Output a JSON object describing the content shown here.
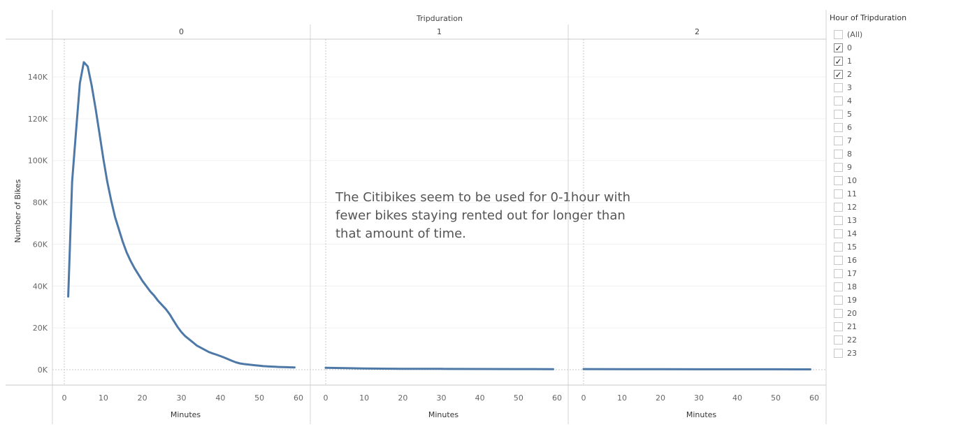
{
  "chart_data": {
    "type": "line",
    "column_header_title": "Tripduration",
    "ylabel": "Number of Bikes",
    "xlabel": "Minutes",
    "y_ticks": [
      "0K",
      "20K",
      "40K",
      "60K",
      "80K",
      "100K",
      "120K",
      "140K"
    ],
    "ylim": [
      0,
      150000
    ],
    "xlim": [
      0,
      60
    ],
    "x_ticks": [
      0,
      10,
      20,
      30,
      40,
      50,
      60
    ],
    "annotation": "The Citibikes seem to be used for 0-1hour with fewer bikes staying rented out for longer than that amount of time.",
    "panels": [
      {
        "header": "0",
        "x": [
          1,
          2,
          3,
          4,
          5,
          6,
          7,
          8,
          9,
          10,
          11,
          12,
          13,
          14,
          15,
          16,
          17,
          18,
          19,
          20,
          21,
          22,
          23,
          24,
          25,
          26,
          27,
          28,
          29,
          30,
          31,
          32,
          33,
          34,
          35,
          36,
          37,
          38,
          39,
          40,
          41,
          42,
          43,
          44,
          45,
          46,
          47,
          48,
          49,
          50,
          51,
          52,
          53,
          54,
          55,
          56,
          57,
          58,
          59
        ],
        "y": [
          35000,
          90000,
          114000,
          137000,
          147000,
          145000,
          136000,
          125000,
          113000,
          101000,
          90000,
          81000,
          73000,
          67000,
          61000,
          56000,
          52000,
          48500,
          45500,
          42500,
          40000,
          37500,
          35500,
          33000,
          31000,
          29000,
          26500,
          23500,
          20500,
          18000,
          16000,
          14500,
          13000,
          11500,
          10500,
          9500,
          8500,
          7800,
          7200,
          6500,
          5800,
          5000,
          4200,
          3500,
          3000,
          2700,
          2500,
          2300,
          2100,
          1900,
          1700,
          1600,
          1500,
          1400,
          1300,
          1250,
          1200,
          1150,
          1100
        ]
      },
      {
        "header": "1",
        "x": [
          0,
          10,
          20,
          30,
          40,
          50,
          59
        ],
        "y": [
          900,
          600,
          450,
          400,
          350,
          300,
          250
        ]
      },
      {
        "header": "2",
        "x": [
          0,
          10,
          20,
          30,
          40,
          50,
          59
        ],
        "y": [
          300,
          250,
          230,
          210,
          200,
          190,
          180
        ]
      }
    ],
    "color": "#4e79a7",
    "grid": true
  },
  "filter": {
    "title": "Hour of Tripduration",
    "items": [
      {
        "label": "(All)",
        "checked": false
      },
      {
        "label": "0",
        "checked": true
      },
      {
        "label": "1",
        "checked": true
      },
      {
        "label": "2",
        "checked": true
      },
      {
        "label": "3",
        "checked": false
      },
      {
        "label": "4",
        "checked": false
      },
      {
        "label": "5",
        "checked": false
      },
      {
        "label": "6",
        "checked": false
      },
      {
        "label": "7",
        "checked": false
      },
      {
        "label": "8",
        "checked": false
      },
      {
        "label": "9",
        "checked": false
      },
      {
        "label": "10",
        "checked": false
      },
      {
        "label": "11",
        "checked": false
      },
      {
        "label": "12",
        "checked": false
      },
      {
        "label": "13",
        "checked": false
      },
      {
        "label": "14",
        "checked": false
      },
      {
        "label": "15",
        "checked": false
      },
      {
        "label": "16",
        "checked": false
      },
      {
        "label": "17",
        "checked": false
      },
      {
        "label": "18",
        "checked": false
      },
      {
        "label": "19",
        "checked": false
      },
      {
        "label": "20",
        "checked": false
      },
      {
        "label": "21",
        "checked": false
      },
      {
        "label": "22",
        "checked": false
      },
      {
        "label": "23",
        "checked": false
      }
    ]
  }
}
